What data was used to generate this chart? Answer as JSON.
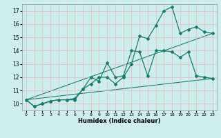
{
  "xlabel": "Humidex (Indice chaleur)",
  "background_color": "#cdeeed",
  "grid_color": "#b8d8d8",
  "line_color": "#1a7a6e",
  "xlim": [
    -0.5,
    23.5
  ],
  "ylim": [
    9.5,
    17.5
  ],
  "yticks": [
    10,
    11,
    12,
    13,
    14,
    15,
    16,
    17
  ],
  "xticks": [
    0,
    1,
    2,
    3,
    4,
    5,
    6,
    7,
    8,
    9,
    10,
    11,
    12,
    13,
    14,
    15,
    16,
    17,
    18,
    19,
    20,
    21,
    22,
    23
  ],
  "series1_x": [
    0,
    1,
    2,
    3,
    4,
    5,
    6,
    7,
    8,
    9,
    10,
    11,
    12,
    13,
    14,
    15,
    16,
    17,
    18,
    19,
    20,
    21,
    22,
    23
  ],
  "series1_y": [
    10.3,
    9.8,
    10.0,
    10.2,
    10.3,
    10.3,
    10.3,
    11.1,
    11.5,
    12.0,
    12.0,
    11.5,
    12.0,
    13.0,
    15.1,
    14.9,
    15.9,
    17.0,
    17.3,
    15.3,
    15.6,
    15.8,
    15.4,
    15.3
  ],
  "series2_x": [
    0,
    1,
    2,
    3,
    4,
    5,
    6,
    7,
    8,
    9,
    10,
    11,
    12,
    13,
    14,
    15,
    16,
    17,
    18,
    19,
    20,
    21,
    22,
    23
  ],
  "series2_y": [
    10.3,
    9.8,
    10.0,
    10.2,
    10.3,
    10.3,
    10.4,
    11.1,
    12.0,
    11.7,
    13.1,
    12.0,
    12.1,
    14.0,
    13.9,
    12.1,
    14.0,
    14.0,
    13.9,
    13.5,
    13.9,
    12.1,
    12.0,
    11.9
  ],
  "series3_x": [
    0,
    23
  ],
  "series3_y": [
    10.3,
    15.3
  ],
  "series4_x": [
    0,
    23
  ],
  "series4_y": [
    10.3,
    11.9
  ]
}
